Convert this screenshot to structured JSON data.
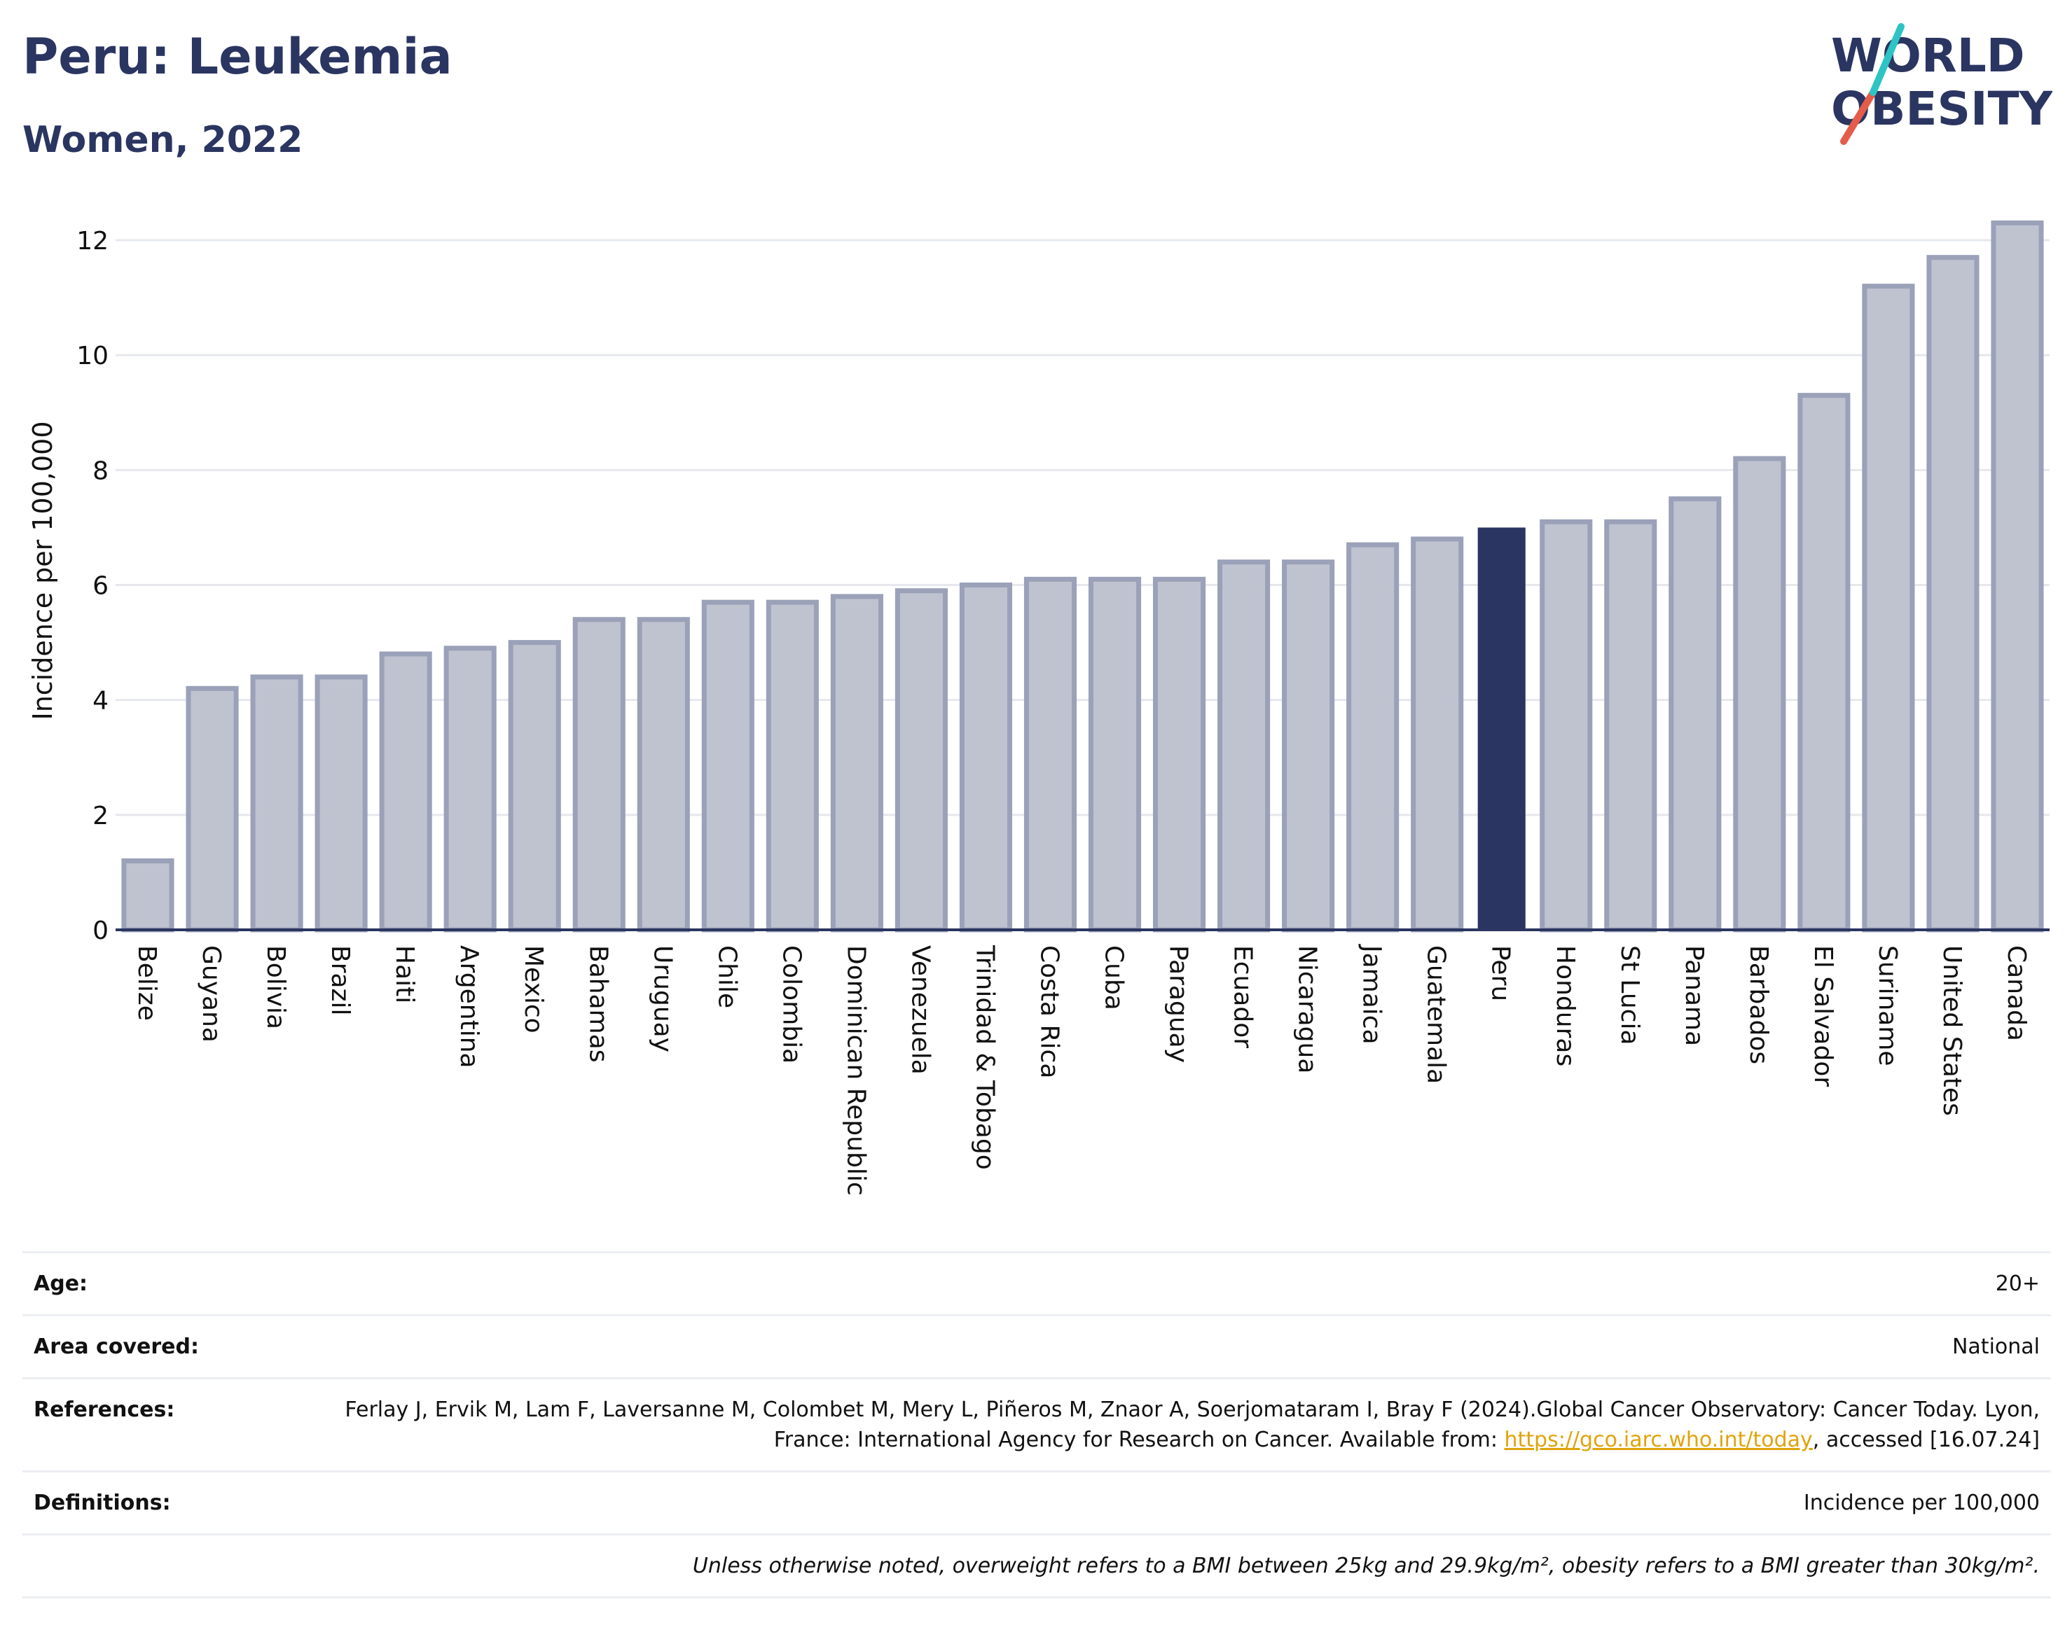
{
  "header": {
    "title": "Peru: Leukemia",
    "subtitle": "Women, 2022"
  },
  "logo": {
    "line1": "WORLD",
    "line2": "OBESITY",
    "colors": {
      "text": "#2b3561",
      "slash_teal": "#2ec4c4",
      "slash_red": "#e45c4a"
    }
  },
  "chart_data": {
    "type": "bar",
    "title": "Peru: Leukemia",
    "subtitle": "Women, 2022",
    "xlabel": "",
    "ylabel": "Incidence per 100,000",
    "ylim": [
      0,
      12.5
    ],
    "yticks": [
      0,
      2,
      4,
      6,
      8,
      10,
      12
    ],
    "grid": true,
    "highlight": "Peru",
    "colors": {
      "bar": "#bfc3d0",
      "bar_border": "#9aa1b8",
      "highlight": "#2b3561",
      "grid": "#e6e8ee",
      "axis": "#2b3561"
    },
    "categories": [
      "Belize",
      "Guyana",
      "Bolivia",
      "Brazil",
      "Haiti",
      "Argentina",
      "Mexico",
      "Bahamas",
      "Uruguay",
      "Chile",
      "Colombia",
      "Dominican Republic",
      "Venezuela",
      "Trinidad & Tobago",
      "Costa Rica",
      "Cuba",
      "Paraguay",
      "Ecuador",
      "Nicaragua",
      "Jamaica",
      "Guatemala",
      "Peru",
      "Honduras",
      "St Lucia",
      "Panama",
      "Barbados",
      "El Salvador",
      "Suriname",
      "United States",
      "Canada"
    ],
    "values": [
      1.2,
      4.2,
      4.4,
      4.4,
      4.8,
      4.9,
      5.0,
      5.4,
      5.4,
      5.7,
      5.7,
      5.8,
      5.9,
      6.0,
      6.1,
      6.1,
      6.1,
      6.4,
      6.4,
      6.7,
      6.8,
      7.0,
      7.1,
      7.1,
      7.5,
      8.2,
      9.3,
      11.2,
      11.7,
      12.3
    ]
  },
  "info": {
    "age_label": "Age:",
    "age_value": "20+",
    "area_label": "Area covered:",
    "area_value": "National",
    "references_label": "References:",
    "references_text": "Ferlay J, Ervik M, Lam F, Laversanne M, Colombet M, Mery L, Piñeros M, Znaor A, Soerjomataram I, Bray F (2024).Global Cancer Observatory: Cancer Today. Lyon, France: International Agency for Research on Cancer. Available from: ",
    "references_link": "https://gco.iarc.who.int/today",
    "references_suffix": ", accessed [16.07.24]",
    "definitions_label": "Definitions:",
    "definitions_value": "Incidence per 100,000",
    "note": "Unless otherwise noted, overweight refers to a BMI between 25kg and 29.9kg/m², obesity refers to a BMI greater than 30kg/m²."
  }
}
